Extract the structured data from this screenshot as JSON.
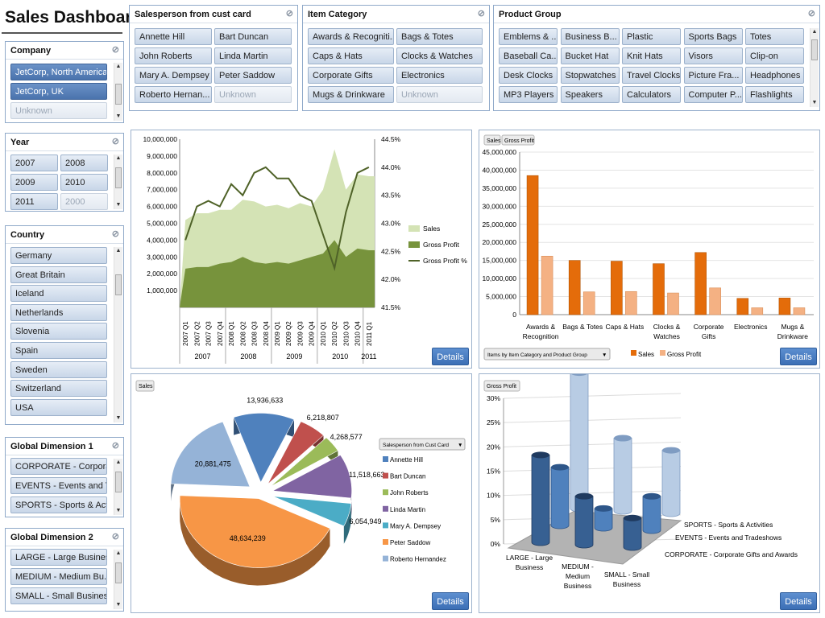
{
  "page": {
    "title": "Sales Dashboard"
  },
  "slicers": {
    "salesperson": {
      "title": "Salesperson from cust card",
      "items": [
        {
          "label": "Annette Hill",
          "state": "normal"
        },
        {
          "label": "Bart Duncan",
          "state": "normal"
        },
        {
          "label": "John Roberts",
          "state": "normal"
        },
        {
          "label": "Linda Martin",
          "state": "normal"
        },
        {
          "label": "Mary A. Dempsey",
          "state": "normal"
        },
        {
          "label": "Peter Saddow",
          "state": "normal"
        },
        {
          "label": "Roberto Hernan...",
          "state": "normal"
        },
        {
          "label": "Unknown",
          "state": "dim"
        }
      ]
    },
    "item_category": {
      "title": "Item Category",
      "items": [
        {
          "label": "Awards & Recogniti...",
          "state": "normal"
        },
        {
          "label": "Bags & Totes",
          "state": "normal"
        },
        {
          "label": "Caps & Hats",
          "state": "normal"
        },
        {
          "label": "Clocks & Watches",
          "state": "normal"
        },
        {
          "label": "Corporate Gifts",
          "state": "normal"
        },
        {
          "label": "Electronics",
          "state": "normal"
        },
        {
          "label": "Mugs & Drinkware",
          "state": "normal"
        },
        {
          "label": "Unknown",
          "state": "dim"
        }
      ]
    },
    "product_group": {
      "title": "Product Group",
      "items": [
        {
          "label": "Emblems & ...",
          "state": "normal"
        },
        {
          "label": "Business B...",
          "state": "normal"
        },
        {
          "label": "Plastic",
          "state": "normal"
        },
        {
          "label": "Sports Bags",
          "state": "normal"
        },
        {
          "label": "Totes",
          "state": "normal"
        },
        {
          "label": "Baseball Ca...",
          "state": "normal"
        },
        {
          "label": "Bucket Hat",
          "state": "normal"
        },
        {
          "label": "Knit Hats",
          "state": "normal"
        },
        {
          "label": "Visors",
          "state": "normal"
        },
        {
          "label": "Clip-on",
          "state": "normal"
        },
        {
          "label": "Desk Clocks",
          "state": "normal"
        },
        {
          "label": "Stopwatches",
          "state": "normal"
        },
        {
          "label": "Travel Clocks",
          "state": "normal"
        },
        {
          "label": "Picture Fra...",
          "state": "normal"
        },
        {
          "label": "Headphones",
          "state": "normal"
        },
        {
          "label": "MP3 Players",
          "state": "normal"
        },
        {
          "label": "Speakers",
          "state": "normal"
        },
        {
          "label": "Calculators",
          "state": "normal"
        },
        {
          "label": "Computer P...",
          "state": "normal"
        },
        {
          "label": "Flashlights",
          "state": "normal"
        }
      ]
    },
    "company": {
      "title": "Company",
      "items": [
        {
          "label": "JetCorp, North America",
          "state": "sel"
        },
        {
          "label": "JetCorp, UK",
          "state": "sel"
        },
        {
          "label": "Unknown",
          "state": "dim"
        }
      ]
    },
    "year": {
      "title": "Year",
      "items": [
        {
          "label": "2007",
          "state": "normal"
        },
        {
          "label": "2008",
          "state": "normal"
        },
        {
          "label": "2009",
          "state": "normal"
        },
        {
          "label": "2010",
          "state": "normal"
        },
        {
          "label": "2011",
          "state": "normal"
        },
        {
          "label": "2000",
          "state": "dim"
        }
      ]
    },
    "country": {
      "title": "Country",
      "items": [
        {
          "label": "Germany",
          "state": "normal"
        },
        {
          "label": "Great Britain",
          "state": "normal"
        },
        {
          "label": "Iceland",
          "state": "normal"
        },
        {
          "label": "Netherlands",
          "state": "normal"
        },
        {
          "label": "Slovenia",
          "state": "normal"
        },
        {
          "label": "Spain",
          "state": "normal"
        },
        {
          "label": "Sweden",
          "state": "normal"
        },
        {
          "label": "Switzerland",
          "state": "normal"
        },
        {
          "label": "USA",
          "state": "normal"
        }
      ]
    },
    "global_dim1": {
      "title": "Global Dimension 1",
      "items": [
        {
          "label": "CORPORATE - Corporat...",
          "state": "normal"
        },
        {
          "label": "EVENTS - Events and T...",
          "state": "normal"
        },
        {
          "label": "SPORTS - Sports & Acti...",
          "state": "normal"
        }
      ]
    },
    "global_dim2": {
      "title": "Global Dimension 2",
      "items": [
        {
          "label": "LARGE - Large Business",
          "state": "normal"
        },
        {
          "label": "MEDIUM - Medium Bu...",
          "state": "normal"
        },
        {
          "label": "SMALL - Small Business",
          "state": "normal"
        }
      ]
    }
  },
  "details_label": "Details",
  "chart_data": [
    {
      "type": "area",
      "title": "",
      "x": [
        "2007 Q1",
        "2007 Q2",
        "2007 Q3",
        "2007 Q4",
        "2008 Q1",
        "2008 Q2",
        "2008 Q3",
        "2008 Q4",
        "2009 Q1",
        "2009 Q2",
        "2009 Q3",
        "2009 Q4",
        "2010 Q1",
        "2010 Q2",
        "2010 Q3",
        "2010 Q4",
        "2011 Q1"
      ],
      "year_groups": [
        "2007",
        "2008",
        "2009",
        "2010",
        "2011"
      ],
      "y_ticks": [
        "1,000,000",
        "2,000,000",
        "3,000,000",
        "4,000,000",
        "5,000,000",
        "6,000,000",
        "7,000,000",
        "8,000,000",
        "9,000,000",
        "10,000,000"
      ],
      "y2_ticks": [
        "41.5%",
        "42.0%",
        "42.5%",
        "43.0%",
        "43.5%",
        "44.0%",
        "44.5%"
      ],
      "ylim": [
        0,
        10000000
      ],
      "y2lim": [
        41.5,
        44.5
      ],
      "series": [
        {
          "name": "Sales",
          "color": "#d4e3b5",
          "values": [
            5200000,
            5600000,
            5600000,
            5800000,
            5800000,
            6400000,
            6300000,
            6000000,
            6100000,
            5900000,
            6200000,
            6000000,
            7000000,
            9400000,
            7000000,
            7900000,
            7800000
          ]
        },
        {
          "name": "Gross Profit",
          "color": "#77933c",
          "values": [
            2300000,
            2400000,
            2400000,
            2600000,
            2700000,
            3000000,
            2700000,
            2600000,
            2700000,
            2600000,
            2800000,
            3000000,
            3200000,
            4000000,
            3000000,
            3500000,
            3400000
          ]
        },
        {
          "name": "Gross Profit %",
          "color": "#4f6228",
          "axis": "y2",
          "values": [
            42.7,
            43.3,
            43.4,
            43.3,
            43.7,
            43.5,
            43.9,
            44.0,
            43.8,
            43.8,
            43.5,
            43.4,
            42.8,
            42.2,
            43.2,
            43.9,
            44.0
          ]
        }
      ]
    },
    {
      "type": "bar",
      "title": "",
      "tags": [
        "Sales",
        "Gross Profit"
      ],
      "categories": [
        "Awards & Recognition",
        "Bags & Totes",
        "Caps & Hats",
        "Clocks & Watches",
        "Corporate Gifts",
        "Electronics",
        "Mugs & Drinkware"
      ],
      "ylim": [
        0,
        45000000
      ],
      "y_ticks": [
        "0",
        "5,000,000",
        "10,000,000",
        "15,000,000",
        "20,000,000",
        "25,000,000",
        "30,000,000",
        "35,000,000",
        "40,000,000",
        "45,000,000"
      ],
      "series": [
        {
          "name": "Sales",
          "color": "#e46c0a",
          "values": [
            38500000,
            15000000,
            14800000,
            14100000,
            17200000,
            4500000,
            4600000
          ]
        },
        {
          "name": "Gross Profit",
          "color": "#f4b183",
          "values": [
            16200000,
            6300000,
            6400000,
            6000000,
            7400000,
            1900000,
            1900000
          ]
        }
      ],
      "field_button": "Items by Item Category and Product Group"
    },
    {
      "type": "pie",
      "title": "",
      "tags": [
        "Sales"
      ],
      "legend_title": "Salesperson from Cust Card",
      "slices": [
        {
          "name": "Annette Hill",
          "value": 13936633,
          "label": "13,936,633",
          "color": "#4f81bd"
        },
        {
          "name": "Bart Duncan",
          "value": 6218807,
          "label": "6,218,807",
          "color": "#c0504d"
        },
        {
          "name": "John Roberts",
          "value": 4268577,
          "label": "4,268,577",
          "color": "#9bbb59"
        },
        {
          "name": "Linda Martin",
          "value": 11518663,
          "label": "11,518,663",
          "color": "#8064a2"
        },
        {
          "name": "Mary A. Dempsey",
          "value": 6054949,
          "label": "6,054,949",
          "color": "#4bacc6"
        },
        {
          "name": "Peter Saddow",
          "value": 48634239,
          "label": "48,634,239",
          "color": "#f79646"
        },
        {
          "name": "Roberto Hernandez",
          "value": 20881475,
          "label": "20,881,475",
          "color": "#95b3d7"
        }
      ]
    },
    {
      "type": "bar",
      "title": "",
      "tags": [
        "Gross Profit"
      ],
      "y_ticks": [
        "0%",
        "5%",
        "10%",
        "15%",
        "20%",
        "25%",
        "30%"
      ],
      "ylim": [
        0,
        30
      ],
      "categories": [
        "LARGE - Large Business",
        "MEDIUM - Medium Business",
        "SMALL - Small Business"
      ],
      "depth_series": [
        {
          "name": "CORPORATE - Corporate Gifts and Awards",
          "values": [
            18,
            10,
            6
          ]
        },
        {
          "name": "EVENTS - Events and Tradeshows",
          "values": [
            12,
            4,
            7
          ]
        },
        {
          "name": "SPORTS - Sports & Activities",
          "values": [
            28,
            15,
            13
          ]
        }
      ],
      "category_labels": [
        [
          "LARGE - Large",
          "Business"
        ],
        [
          "MEDIUM -",
          "Medium",
          "Business"
        ],
        [
          "SMALL - Small",
          "Business"
        ]
      ]
    }
  ]
}
